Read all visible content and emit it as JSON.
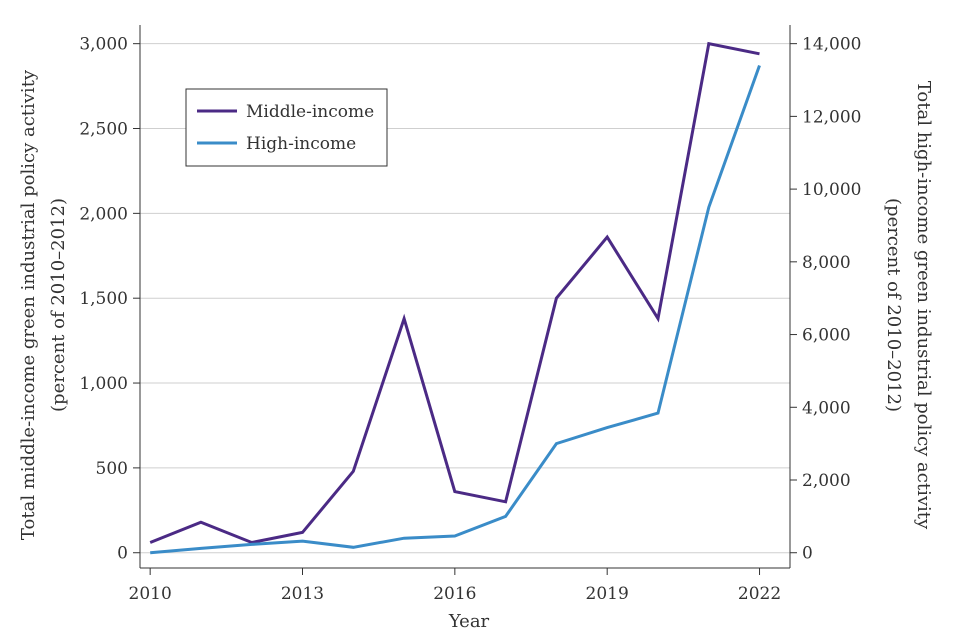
{
  "chart_data": {
    "type": "line",
    "x": [
      2010,
      2011,
      2012,
      2013,
      2014,
      2015,
      2016,
      2017,
      2018,
      2019,
      2020,
      2021,
      2022
    ],
    "xlabel": "Year",
    "xticks": [
      2010,
      2013,
      2016,
      2019,
      2022
    ],
    "xtick_labels": [
      "2010",
      "2013",
      "2016",
      "2019",
      "2022"
    ],
    "xlim": [
      2009.8,
      2022.6
    ],
    "y_left": {
      "label_line1": "Total middle-income green industrial policy activity",
      "label_line2": "(percent of 2010–2012)",
      "lim": [
        -90,
        3110
      ],
      "ticks": [
        0,
        500,
        1000,
        1500,
        2000,
        2500,
        3000
      ],
      "tick_labels": [
        "0",
        "500",
        "1,000",
        "1,500",
        "2,000",
        "2,500",
        "3,000"
      ]
    },
    "y_right": {
      "label_line1": "Total high-income green industrial policy activity",
      "label_line2": "(percent of 2010–2012)",
      "lim": [
        -420,
        14513
      ],
      "ticks": [
        0,
        2000,
        4000,
        6000,
        8000,
        10000,
        12000,
        14000
      ],
      "tick_labels": [
        "0",
        "2,000",
        "4,000",
        "6,000",
        "8,000",
        "10,000",
        "12,000",
        "14,000"
      ]
    },
    "series": [
      {
        "name": "Middle-income",
        "axis": "left",
        "color": "#4b2a85",
        "values": [
          60,
          180,
          60,
          120,
          480,
          1380,
          360,
          300,
          1500,
          1860,
          1380,
          3000,
          2940
        ]
      },
      {
        "name": "High-income",
        "axis": "right",
        "color": "#3a8cc8",
        "values": [
          0,
          120,
          230,
          320,
          150,
          400,
          460,
          1000,
          3000,
          3440,
          3840,
          9500,
          13400
        ]
      }
    ],
    "grid": "horizontal",
    "legend": "top-left"
  }
}
